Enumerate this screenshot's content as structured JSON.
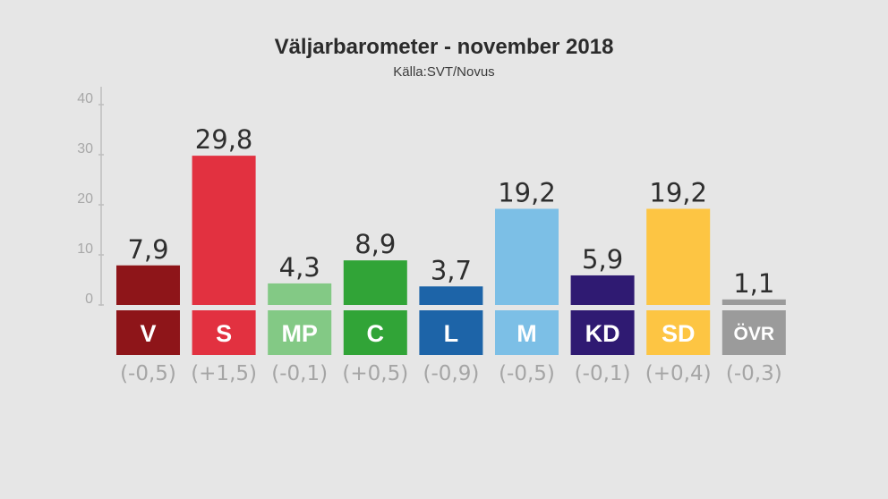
{
  "chart_data": {
    "type": "bar",
    "title": "Väljarbarometer - november 2018",
    "subtitle": "Källa:SVT/Novus",
    "categories": [
      "V",
      "S",
      "MP",
      "C",
      "L",
      "M",
      "KD",
      "SD",
      "ÖVR"
    ],
    "values": [
      7.9,
      29.8,
      4.3,
      8.9,
      3.7,
      19.2,
      5.9,
      19.2,
      1.1
    ],
    "value_labels": [
      "7,9",
      "29,8",
      "4,3",
      "8,9",
      "3,7",
      "19,2",
      "5,9",
      "19,2",
      "1,1"
    ],
    "changes": [
      "(-0,5)",
      "(+1,5)",
      "(-0,1)",
      "(+0,5)",
      "(-0,9)",
      "(-0,5)",
      "(-0,1)",
      "(+0,4)",
      "(-0,3)"
    ],
    "colors": [
      "#8e1519",
      "#e23140",
      "#83c985",
      "#31a437",
      "#1d64a8",
      "#7cbfe6",
      "#2f1a72",
      "#fdc543",
      "#9b9b9b"
    ],
    "yticks": [
      "0",
      "10",
      "20",
      "30",
      "40"
    ],
    "ylim": [
      0,
      40
    ],
    "grid": false,
    "legend": "none"
  }
}
